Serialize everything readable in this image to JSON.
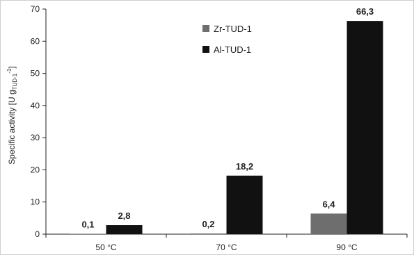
{
  "chart_data": {
    "type": "bar",
    "categories": [
      "50 °C",
      "70 °C",
      "90 °C"
    ],
    "series": [
      {
        "name": "Zr-TUD-1",
        "color": "#6e6e6e",
        "values": [
          0.1,
          0.2,
          6.4
        ],
        "labels": [
          "0,1",
          "0,2",
          "6,4"
        ]
      },
      {
        "name": "Al-TUD-1",
        "color": "#111111",
        "values": [
          2.8,
          18.2,
          66.3
        ],
        "labels": [
          "2,8",
          "18,2",
          "66,3"
        ]
      }
    ],
    "ylabel": {
      "main": "Specific activity [U g",
      "sub": "TUD-1",
      "sup": "-1",
      "end": "]"
    },
    "ylim": [
      0,
      70
    ],
    "yticks": [
      0,
      10,
      20,
      30,
      40,
      50,
      60,
      70
    ],
    "grid": false,
    "legend_position": "top-center"
  }
}
